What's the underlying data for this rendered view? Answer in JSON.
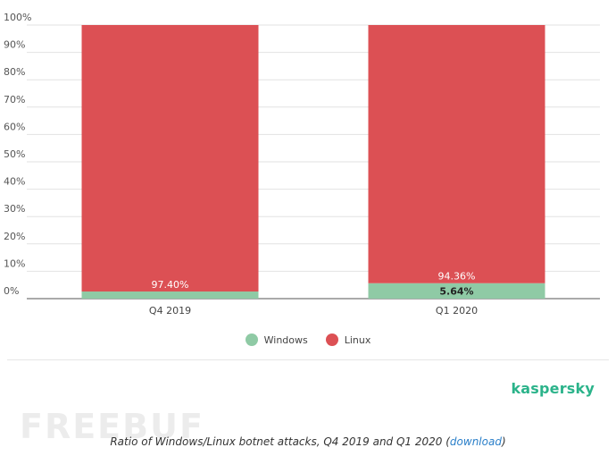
{
  "chart_data": {
    "type": "bar",
    "stacked": true,
    "categories": [
      "Q4 2019",
      "Q1 2020"
    ],
    "series": [
      {
        "name": "Windows",
        "values": [
          2.6,
          5.64
        ],
        "color": "#8fcaa5",
        "labels": [
          "",
          "5.64%"
        ]
      },
      {
        "name": "Linux",
        "values": [
          97.4,
          94.36
        ],
        "color": "#dc5054",
        "labels": [
          "97.40%",
          "94.36%"
        ]
      }
    ],
    "ylim": [
      0,
      100
    ],
    "yticks": [
      "0%",
      "10%",
      "20%",
      "30%",
      "40%",
      "50%",
      "60%",
      "70%",
      "80%",
      "90%",
      "100%"
    ],
    "grid": true,
    "legend_position": "bottom"
  },
  "legend": {
    "windows_label": "Windows",
    "linux_label": "Linux",
    "windows_color": "#8fcaa5",
    "linux_color": "#dc5054"
  },
  "brand": {
    "name": "kaspersky",
    "color": "#2bb38a"
  },
  "watermark": {
    "text": "FREEBUF"
  },
  "caption": {
    "text": "Ratio of Windows/Linux botnet attacks, Q4 2019 and Q1 2020 (",
    "link_text": "download",
    "text_end": ")"
  }
}
